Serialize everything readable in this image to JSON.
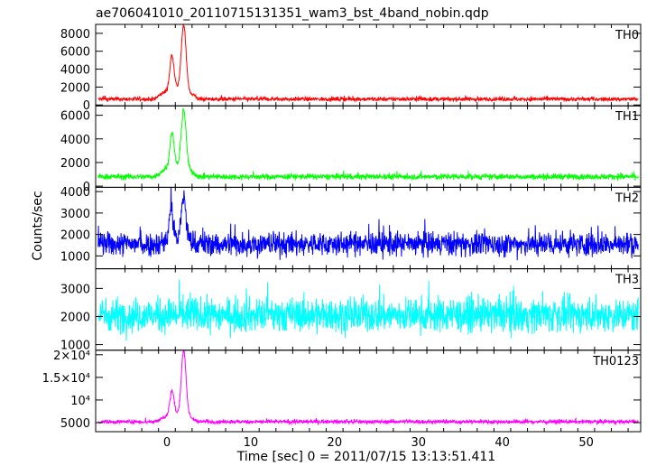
{
  "chart_data": {
    "type": "line",
    "title": "ae706041010_20110715131351_wam3_bst_4band_nobin.qdp",
    "xlabel": "Time [sec] 0 = 2011/07/15 13:13:51.411",
    "ylabel": "Counts/sec",
    "xlim": [
      -8.5,
      56.5
    ],
    "x_ticks": [
      {
        "value": 0,
        "label": "0"
      },
      {
        "value": 10,
        "label": "10"
      },
      {
        "value": 20,
        "label": "20"
      },
      {
        "value": 30,
        "label": "30"
      },
      {
        "value": 40,
        "label": "40"
      },
      {
        "value": 50,
        "label": "50"
      }
    ],
    "panels": [
      {
        "name": "TH0",
        "color": "#ff0000",
        "ylim": [
          -100,
          9000
        ],
        "y_ticks": [
          {
            "value": 0,
            "label": "0"
          },
          {
            "value": 2000,
            "label": "2000"
          },
          {
            "value": 4000,
            "label": "4000"
          },
          {
            "value": 6000,
            "label": "6000"
          },
          {
            "value": 8000,
            "label": "8000"
          }
        ],
        "baseline": 650,
        "noise": 450,
        "peaks": [
          {
            "time": 0.6,
            "height": 3800,
            "width": 0.35
          },
          {
            "time": 2.0,
            "height": 7200,
            "width": 0.4
          }
        ],
        "hump": {
          "start": -1.5,
          "end": 3.8,
          "height": 1200
        }
      },
      {
        "name": "TH1",
        "color": "#00ff00",
        "ylim": [
          -100,
          6800
        ],
        "y_ticks": [
          {
            "value": 0,
            "label": "0"
          },
          {
            "value": 2000,
            "label": "2000"
          },
          {
            "value": 4000,
            "label": "4000"
          },
          {
            "value": 6000,
            "label": "6000"
          }
        ],
        "baseline": 800,
        "noise": 480,
        "peaks": [
          {
            "time": 0.6,
            "height": 2900,
            "width": 0.35
          },
          {
            "time": 2.0,
            "height": 4900,
            "width": 0.4
          }
        ],
        "hump": {
          "start": -1.5,
          "end": 3.8,
          "height": 900
        }
      },
      {
        "name": "TH2",
        "color": "#0000ff",
        "ylim": [
          400,
          4200
        ],
        "y_ticks": [
          {
            "value": 1000,
            "label": "1000"
          },
          {
            "value": 2000,
            "label": "2000"
          },
          {
            "value": 3000,
            "label": "3000"
          },
          {
            "value": 4000,
            "label": "4000"
          }
        ],
        "baseline": 1550,
        "noise": 1100,
        "peaks": [
          {
            "time": 0.5,
            "height": 1500,
            "width": 0.3
          },
          {
            "time": 2.0,
            "height": 2000,
            "width": 0.35
          }
        ],
        "hump": {
          "start": -1,
          "end": 3.5,
          "height": 300
        }
      },
      {
        "name": "TH3",
        "color": "#00ffff",
        "ylim": [
          800,
          3700
        ],
        "y_ticks": [
          {
            "value": 1000,
            "label": "1000"
          },
          {
            "value": 2000,
            "label": "2000"
          },
          {
            "value": 3000,
            "label": "3000"
          }
        ],
        "baseline": 2050,
        "noise": 1200,
        "peaks": [],
        "hump": {
          "start": 0,
          "end": 0,
          "height": 0
        }
      },
      {
        "name": "TH0123",
        "color": "#ff00ff",
        "ylim": [
          3000,
          21000
        ],
        "y_ticks": [
          {
            "value": 5000,
            "label": "5000"
          },
          {
            "value": 10000,
            "label": "10⁴"
          },
          {
            "value": 15000,
            "label": "1.5×10⁴"
          },
          {
            "value": 20000,
            "label": "2×10⁴"
          }
        ],
        "baseline": 5200,
        "noise": 850,
        "peaks": [
          {
            "time": 0.6,
            "height": 5500,
            "width": 0.35
          },
          {
            "time": 2.0,
            "height": 14500,
            "width": 0.4
          }
        ],
        "hump": {
          "start": -1.5,
          "end": 3.8,
          "height": 1500
        }
      }
    ],
    "grid": false,
    "legend": "none"
  }
}
